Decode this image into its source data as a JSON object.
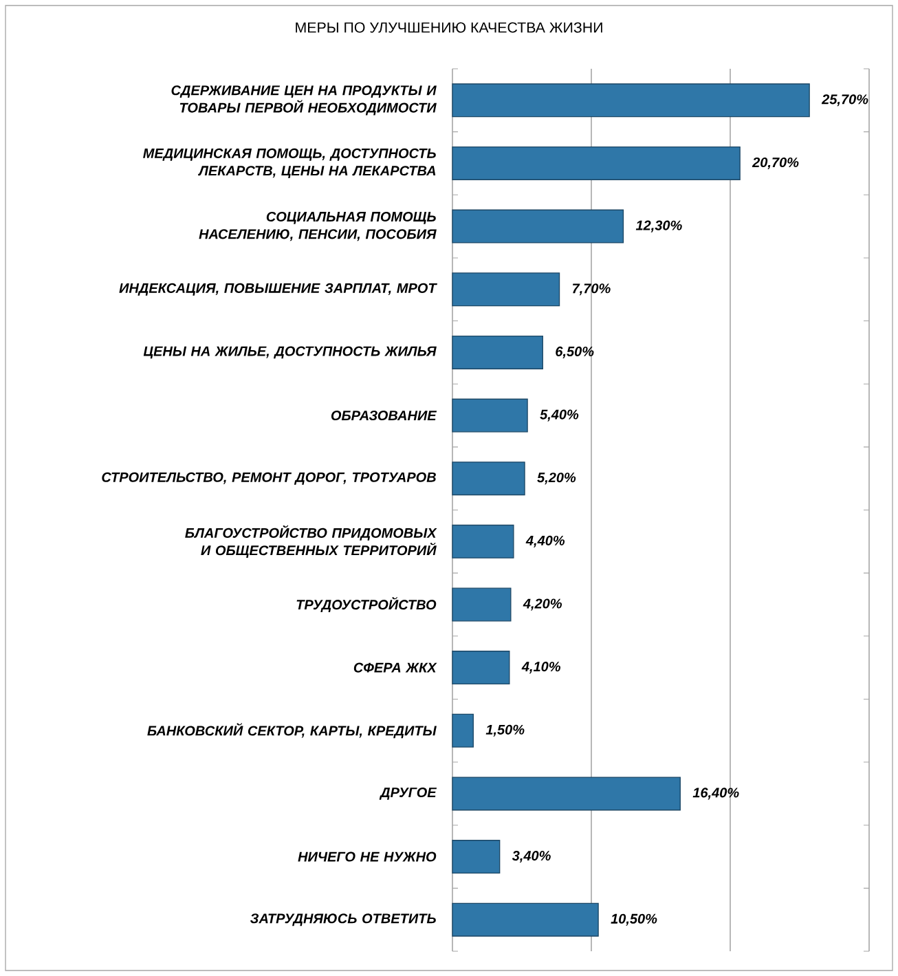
{
  "chart_data": {
    "type": "bar",
    "orientation": "horizontal",
    "title": "МЕРЫ ПО УЛУЧШЕНИЮ КАЧЕСТВА ЖИЗНИ",
    "categories": [
      "СДЕРЖИВАНИЕ ЦЕН НА ПРОДУКТЫ И ТОВАРЫ ПЕРВОЙ НЕОБХОДИМОСТИ",
      "МЕДИЦИНСКАЯ ПОМОЩЬ, ДОСТУПНОСТЬ ЛЕКАРСТВ, ЦЕНЫ НА ЛЕКАРСТВА",
      "СОЦИАЛЬНАЯ ПОМОЩЬ НАСЕЛЕНИЮ, ПЕНСИИ, ПОСОБИЯ",
      "ИНДЕКСАЦИЯ, ПОВЫШЕНИЕ ЗАРПЛАТ, МРОТ",
      "ЦЕНЫ НА ЖИЛЬЕ, ДОСТУПНОСТЬ ЖИЛЬЯ",
      "ОБРАЗОВАНИЕ",
      "СТРОИТЕЛЬСТВО, РЕМОНТ ДОРОГ, ТРОТУАРОВ",
      "БЛАГОУСТРОЙСТВО ПРИДОМОВЫХ И ОБЩЕСТВЕННЫХ ТЕРРИТОРИЙ",
      "ТРУДОУСТРОЙСТВО",
      "СФЕРА ЖКХ",
      "БАНКОВСКИЙ СЕКТОР, КАРТЫ, КРЕДИТЫ",
      "ДРУГОЕ",
      "НИЧЕГО НЕ НУЖНО",
      "ЗАТРУДНЯЮСЬ ОТВЕТИТЬ"
    ],
    "values": [
      25.7,
      20.7,
      12.3,
      7.7,
      6.5,
      5.4,
      5.2,
      4.4,
      4.2,
      4.1,
      1.5,
      16.4,
      3.4,
      10.5
    ],
    "value_labels": [
      "25,70%",
      "20,70%",
      "12,30%",
      "7,70%",
      "6,50%",
      "5,40%",
      "5,20%",
      "4,40%",
      "4,20%",
      "4,10%",
      "1,50%",
      "16,40%",
      "3,40%",
      "10,50%"
    ],
    "color": "#2f77a8",
    "xlim": [
      0,
      30
    ],
    "xticks": [
      {
        "value": 0,
        "label": null
      },
      {
        "value": 10,
        "label": null
      },
      {
        "value": 20,
        "label": null
      },
      {
        "value": 30,
        "label": null
      }
    ],
    "grid": "x",
    "tick_labels": "y"
  }
}
